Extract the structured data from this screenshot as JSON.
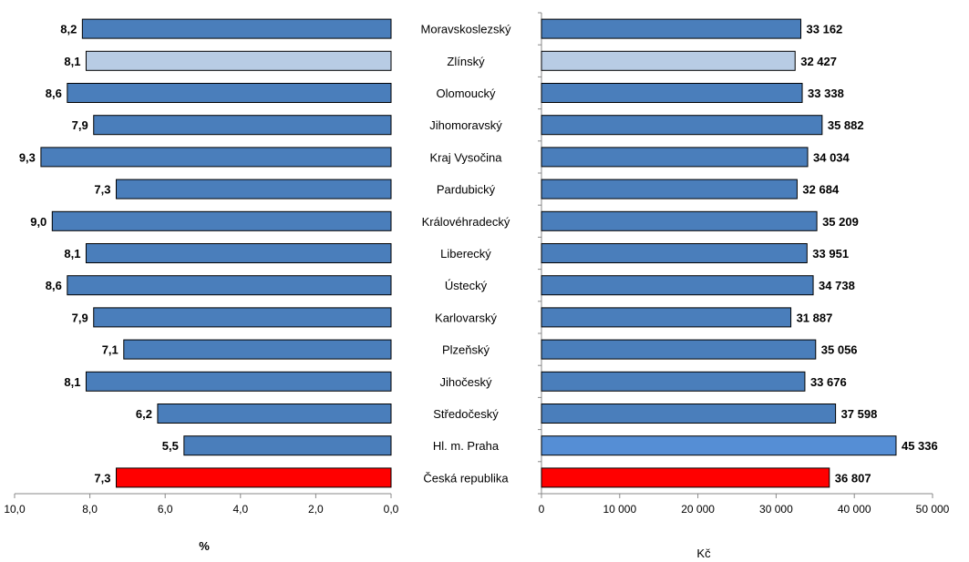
{
  "chart_data": [
    {
      "type": "bar",
      "orientation": "horizontal",
      "axis_direction": "reversed",
      "categories": [
        "Moravskoslezský",
        "Zlínský",
        "Olomoucký",
        "Jihomoravský",
        "Kraj Vysočina",
        "Pardubický",
        "Královéhradecký",
        "Liberecký",
        "Ústecký",
        "Karlovarský",
        "Plzeňský",
        "Jihočeský",
        "Středočeský",
        "Hl. m. Praha",
        "Česká republika"
      ],
      "values": [
        8.2,
        8.1,
        8.6,
        7.9,
        9.3,
        7.3,
        9.0,
        8.1,
        8.6,
        7.9,
        7.1,
        8.1,
        6.2,
        5.5,
        7.3
      ],
      "value_labels": [
        "8,2",
        "8,1",
        "8,6",
        "7,9",
        "9,3",
        "7,3",
        "9,0",
        "8,1",
        "8,6",
        "7,9",
        "7,1",
        "8,1",
        "6,2",
        "5,5",
        "7,3"
      ],
      "bar_colors": [
        "#4a7ebb",
        "#b8cce4",
        "#4a7ebb",
        "#4a7ebb",
        "#4a7ebb",
        "#4a7ebb",
        "#4a7ebb",
        "#4a7ebb",
        "#4a7ebb",
        "#4a7ebb",
        "#4a7ebb",
        "#4a7ebb",
        "#4a7ebb",
        "#4a7ebb",
        "#ff0000"
      ],
      "xlim": [
        0,
        10
      ],
      "ticks": [
        "10,0",
        "8,0",
        "6,0",
        "4,0",
        "2,0",
        "0,0"
      ],
      "tick_values": [
        10,
        8,
        6,
        4,
        2,
        0
      ],
      "xlabel": "%",
      "grid": false
    },
    {
      "type": "bar",
      "orientation": "horizontal",
      "categories": [
        "Moravskoslezský",
        "Zlínský",
        "Olomoucký",
        "Jihomoravský",
        "Kraj Vysočina",
        "Pardubický",
        "Královéhradecký",
        "Liberecký",
        "Ústecký",
        "Karlovarský",
        "Plzeňský",
        "Jihočeský",
        "Středočeský",
        "Hl. m. Praha",
        "Česká republika"
      ],
      "values": [
        33162,
        32427,
        33338,
        35882,
        34034,
        32684,
        35209,
        33951,
        34738,
        31887,
        35056,
        33676,
        37598,
        45336,
        36807
      ],
      "value_labels": [
        "33 162",
        "32 427",
        "33 338",
        "35 882",
        "34 034",
        "32 684",
        "35 209",
        "33 951",
        "34 738",
        "31 887",
        "35 056",
        "33 676",
        "37 598",
        "45 336",
        "36 807"
      ],
      "bar_colors": [
        "#4a7ebb",
        "#b8cce4",
        "#4a7ebb",
        "#4a7ebb",
        "#4a7ebb",
        "#4a7ebb",
        "#4a7ebb",
        "#4a7ebb",
        "#4a7ebb",
        "#4a7ebb",
        "#4a7ebb",
        "#4a7ebb",
        "#4a7ebb",
        "#558ed5",
        "#ff0000"
      ],
      "xlim": [
        0,
        50000
      ],
      "ticks": [
        "0",
        "10 000",
        "20 000",
        "30 000",
        "40 000",
        "50 000"
      ],
      "tick_values": [
        0,
        10000,
        20000,
        30000,
        40000,
        50000
      ],
      "xlabel": "Kč",
      "grid": false
    }
  ]
}
